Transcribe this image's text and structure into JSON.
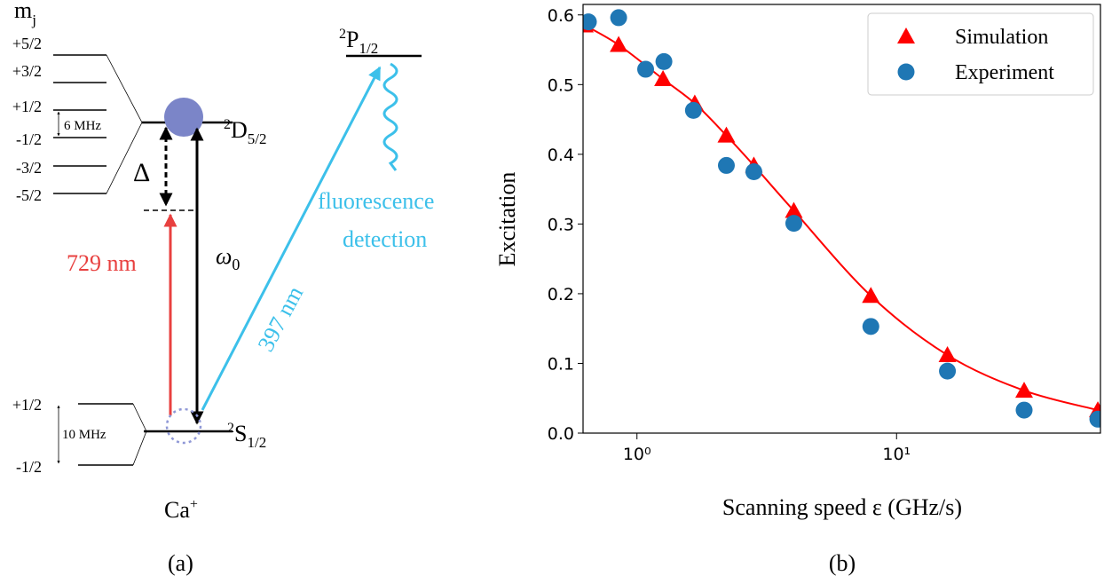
{
  "diagram": {
    "panel_label": "(a)",
    "mj": {
      "main": "m",
      "sub": "j"
    },
    "d_sublevels": [
      "+5/2",
      "+3/2",
      "+1/2",
      "-1/2",
      "-3/2",
      "-5/2"
    ],
    "d_splitting": "6 MHz",
    "detuning": "Δ",
    "laser_729": "729 nm",
    "omega": {
      "main": "ω",
      "sub": "0"
    },
    "laser_397": "397 nm",
    "fluorescence": [
      "fluorescence",
      "detection"
    ],
    "p_level": {
      "sup": "2",
      "main": "P",
      "sub": "1/2"
    },
    "d_level": {
      "sup": "2",
      "main": "D",
      "sub": "5/2"
    },
    "s_level": {
      "sup": "2",
      "main": "S",
      "sub": "1/2"
    },
    "s_sublevels": [
      "+1/2",
      "-1/2"
    ],
    "s_splitting": "10 MHz",
    "ion": {
      "main": "Ca",
      "sup": "+"
    }
  },
  "chart_data": {
    "type": "scatter",
    "panel_label": "(b)",
    "x_label": "Scanning speed ε (GHz/s)",
    "y_label": "Excitation",
    "x_scale": "log",
    "xlim": [
      0.62,
      61
    ],
    "ylim": [
      0,
      0.615
    ],
    "xticks": [
      {
        "value": 1,
        "label": "10⁰"
      },
      {
        "value": 10,
        "label": "10¹"
      }
    ],
    "yticks": [
      {
        "value": 0,
        "label": "0.0"
      },
      0.1,
      0.2,
      0.3,
      0.4,
      0.5,
      0.6
    ],
    "legend": "upper right",
    "series": [
      {
        "name": "Simulation",
        "color": "#ff0000",
        "marker": "triangle",
        "line": true,
        "x": [
          0.63,
          0.85,
          1.26,
          1.67,
          2.21,
          2.82,
          4.02,
          7.96,
          15.7,
          31.0,
          59.6
        ],
        "values": [
          0.585,
          0.557,
          0.508,
          0.473,
          0.427,
          0.384,
          0.319,
          0.197,
          0.112,
          0.061,
          0.033
        ]
      },
      {
        "name": "Experiment",
        "color": "#1f77b4",
        "marker": "circle",
        "line": false,
        "x": [
          0.65,
          0.85,
          1.08,
          1.27,
          1.65,
          2.21,
          2.82,
          4.02,
          7.96,
          15.7,
          31.0,
          59.6
        ],
        "values": [
          0.59,
          0.596,
          0.522,
          0.533,
          0.463,
          0.384,
          0.375,
          0.301,
          0.153,
          0.089,
          0.033,
          0.02
        ]
      }
    ]
  }
}
